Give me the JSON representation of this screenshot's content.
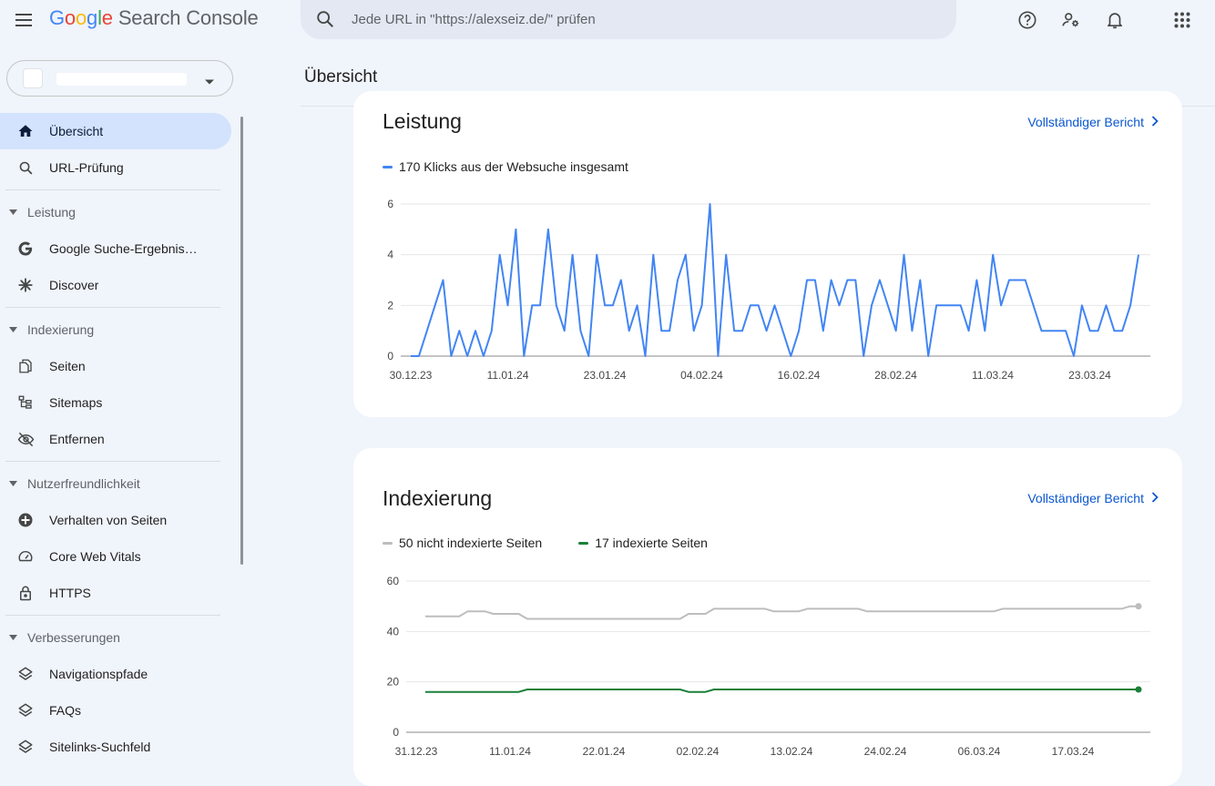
{
  "header": {
    "logo_letters": [
      "G",
      "o",
      "o",
      "g",
      "l",
      "e"
    ],
    "product": "Search Console",
    "search_placeholder": "Jede URL in \"https://alexseiz.de/\" prüfen",
    "icons": [
      "menu-icon",
      "search-icon",
      "help-icon",
      "manage-users-icon",
      "notifications-icon",
      "apps-icon"
    ]
  },
  "page": {
    "title": "Übersicht"
  },
  "sidebar": {
    "top_items": [
      {
        "label": "Übersicht",
        "icon": "home-icon",
        "active": true
      },
      {
        "label": "URL-Prüfung",
        "icon": "search-icon",
        "active": false
      }
    ],
    "sections": [
      {
        "label": "Leistung",
        "items": [
          {
            "label": "Google Suche-Ergebnis…",
            "icon": "google-g-icon"
          },
          {
            "label": "Discover",
            "icon": "asterisk-icon"
          }
        ]
      },
      {
        "label": "Indexierung",
        "items": [
          {
            "label": "Seiten",
            "icon": "pages-icon"
          },
          {
            "label": "Sitemaps",
            "icon": "sitemap-icon"
          },
          {
            "label": "Entfernen",
            "icon": "eye-off-icon"
          }
        ]
      },
      {
        "label": "Nutzerfreundlichkeit",
        "items": [
          {
            "label": "Verhalten von Seiten",
            "icon": "plus-circle-icon"
          },
          {
            "label": "Core Web Vitals",
            "icon": "speedometer-icon"
          },
          {
            "label": "HTTPS",
            "icon": "lock-icon"
          }
        ]
      },
      {
        "label": "Verbesserungen",
        "items": [
          {
            "label": "Navigationspfade",
            "icon": "layers-icon"
          },
          {
            "label": "FAQs",
            "icon": "layers-icon"
          },
          {
            "label": "Sitelinks-Suchfeld",
            "icon": "layers-icon"
          }
        ]
      }
    ]
  },
  "colors": {
    "accent": "#0b57d0",
    "clicks_line": "#4285f4",
    "not_indexed": "#bdbdbd",
    "indexed": "#188038",
    "active_nav": "#d3e3fd"
  },
  "performance": {
    "title": "Leistung",
    "link": "Vollständiger Bericht",
    "legend": "170 Klicks aus der Websuche insgesamt"
  },
  "indexing": {
    "title": "Indexierung",
    "link": "Vollständiger Bericht",
    "legend_not_indexed": "50 nicht indexierte Seiten",
    "legend_indexed": "17 indexierte Seiten"
  },
  "chart_data": [
    {
      "type": "line",
      "title": "Leistung",
      "series": [
        {
          "name": "170 Klicks aus der Websuche insgesamt",
          "values": [
            0,
            0,
            1,
            2,
            3,
            0,
            1,
            0,
            1,
            0,
            1,
            4,
            2,
            5,
            0,
            2,
            2,
            5,
            2,
            1,
            4,
            1,
            0,
            4,
            2,
            2,
            3,
            1,
            2,
            0,
            4,
            1,
            1,
            3,
            4,
            1,
            2,
            6,
            0,
            4,
            1,
            1,
            2,
            2,
            1,
            2,
            1,
            0,
            1,
            3,
            3,
            1,
            3,
            2,
            3,
            3,
            0,
            2,
            3,
            2,
            1,
            4,
            1,
            3,
            0,
            2,
            2,
            2,
            2,
            1,
            3,
            1,
            4,
            2,
            3,
            3,
            3,
            2,
            1,
            1,
            1,
            1,
            0,
            2,
            1,
            1,
            2,
            1,
            1,
            2,
            4
          ]
        }
      ],
      "x_ticks": [
        "30.12.23",
        "11.01.24",
        "23.01.24",
        "04.02.24",
        "16.02.24",
        "28.02.24",
        "11.03.24",
        "23.03.24"
      ],
      "y_ticks": [
        0,
        2,
        4,
        6
      ],
      "ylim": [
        0,
        6
      ],
      "grid": true
    },
    {
      "type": "line",
      "title": "Indexierung",
      "series": [
        {
          "name": "50 nicht indexierte Seiten",
          "values": [
            46,
            46,
            46,
            46,
            46,
            48,
            48,
            48,
            47,
            47,
            47,
            47,
            45,
            45,
            45,
            45,
            45,
            45,
            45,
            45,
            45,
            45,
            45,
            45,
            45,
            45,
            45,
            45,
            45,
            45,
            45,
            47,
            47,
            47,
            49,
            49,
            49,
            49,
            49,
            49,
            49,
            48,
            48,
            48,
            48,
            49,
            49,
            49,
            49,
            49,
            49,
            49,
            48,
            48,
            48,
            48,
            48,
            48,
            48,
            48,
            48,
            48,
            48,
            48,
            48,
            48,
            48,
            48,
            49,
            49,
            49,
            49,
            49,
            49,
            49,
            49,
            49,
            49,
            49,
            49,
            49,
            49,
            49,
            50,
            50
          ]
        },
        {
          "name": "17 indexierte Seiten",
          "values": [
            16,
            16,
            16,
            16,
            16,
            16,
            16,
            16,
            16,
            16,
            16,
            16,
            17,
            17,
            17,
            17,
            17,
            17,
            17,
            17,
            17,
            17,
            17,
            17,
            17,
            17,
            17,
            17,
            17,
            17,
            17,
            16,
            16,
            16,
            17,
            17,
            17,
            17,
            17,
            17,
            17,
            17,
            17,
            17,
            17,
            17,
            17,
            17,
            17,
            17,
            17,
            17,
            17,
            17,
            17,
            17,
            17,
            17,
            17,
            17,
            17,
            17,
            17,
            17,
            17,
            17,
            17,
            17,
            17,
            17,
            17,
            17,
            17,
            17,
            17,
            17,
            17,
            17,
            17,
            17,
            17,
            17,
            17,
            17,
            17
          ]
        }
      ],
      "x_ticks": [
        "31.12.23",
        "11.01.24",
        "22.01.24",
        "02.02.24",
        "13.02.24",
        "24.02.24",
        "06.03.24",
        "17.03.24"
      ],
      "y_ticks": [
        0,
        20,
        40,
        60
      ],
      "ylim": [
        0,
        60
      ],
      "grid": true
    }
  ]
}
